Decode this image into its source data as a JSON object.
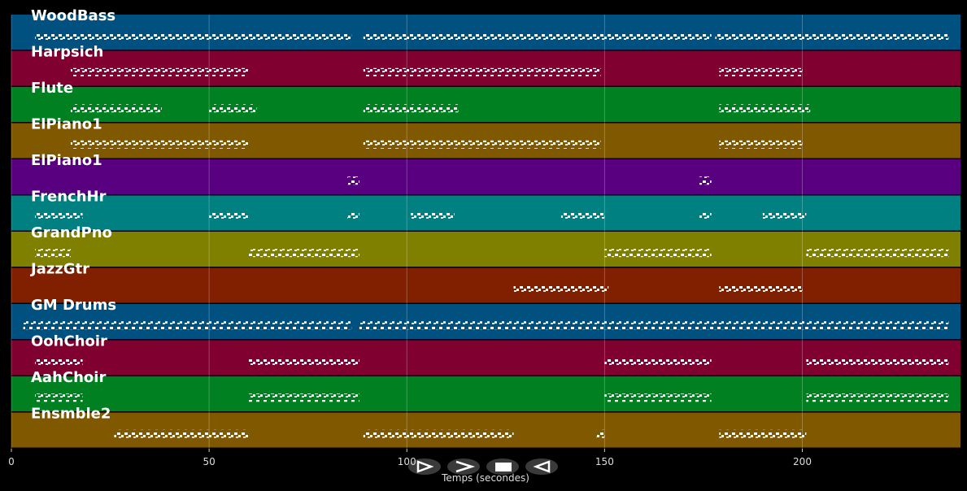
{
  "chart_data": {
    "type": "timeline",
    "xlabel": "Temps (secondes)",
    "xlim": [
      0,
      240
    ],
    "xticks": [
      0,
      50,
      100,
      150,
      200
    ],
    "grid": true,
    "series": [
      {
        "name": "WoodBass",
        "color": "#005080",
        "segments": [
          [
            6,
            86
          ],
          [
            89,
            177
          ],
          [
            178,
            237
          ]
        ]
      },
      {
        "name": "Harpsich",
        "color": "#800030",
        "segments": [
          [
            15,
            60
          ],
          [
            89,
            149
          ],
          [
            179,
            200
          ]
        ]
      },
      {
        "name": "Flute",
        "color": "#008020",
        "segments": [
          [
            15,
            38
          ],
          [
            50,
            62
          ],
          [
            89,
            113
          ],
          [
            179,
            202
          ]
        ]
      },
      {
        "name": "ElPiano1",
        "color": "#805800",
        "segments": [
          [
            15,
            60
          ],
          [
            89,
            149
          ],
          [
            179,
            200
          ]
        ]
      },
      {
        "name": "ElPiano1",
        "color": "#580080",
        "segments": [
          [
            85,
            88
          ],
          [
            174,
            177
          ]
        ]
      },
      {
        "name": "FrenchHr",
        "color": "#008080",
        "segments": [
          [
            6,
            18
          ],
          [
            50,
            60
          ],
          [
            85,
            88
          ],
          [
            101,
            112
          ],
          [
            139,
            150
          ],
          [
            174,
            177
          ],
          [
            190,
            201
          ]
        ]
      },
      {
        "name": "GrandPno",
        "color": "#808000",
        "segments": [
          [
            6,
            15
          ],
          [
            60,
            88
          ],
          [
            150,
            177
          ],
          [
            201,
            237
          ]
        ]
      },
      {
        "name": "JazzGtr",
        "color": "#802000",
        "segments": [
          [
            127,
            151
          ],
          [
            179,
            200
          ]
        ]
      },
      {
        "name": "GM Drums",
        "color": "#005080",
        "segments": [
          [
            3,
            86
          ],
          [
            88,
            177
          ],
          [
            177,
            237
          ]
        ]
      },
      {
        "name": "OohChoir",
        "color": "#800030",
        "segments": [
          [
            6,
            18
          ],
          [
            60,
            88
          ],
          [
            150,
            177
          ],
          [
            201,
            237
          ]
        ]
      },
      {
        "name": "AahChoir",
        "color": "#008020",
        "segments": [
          [
            6,
            18
          ],
          [
            60,
            88
          ],
          [
            150,
            177
          ],
          [
            201,
            237
          ]
        ]
      },
      {
        "name": "Ensmble2",
        "color": "#805800",
        "segments": [
          [
            26,
            60
          ],
          [
            89,
            127
          ],
          [
            148,
            150
          ],
          [
            179,
            201
          ]
        ]
      }
    ]
  }
}
